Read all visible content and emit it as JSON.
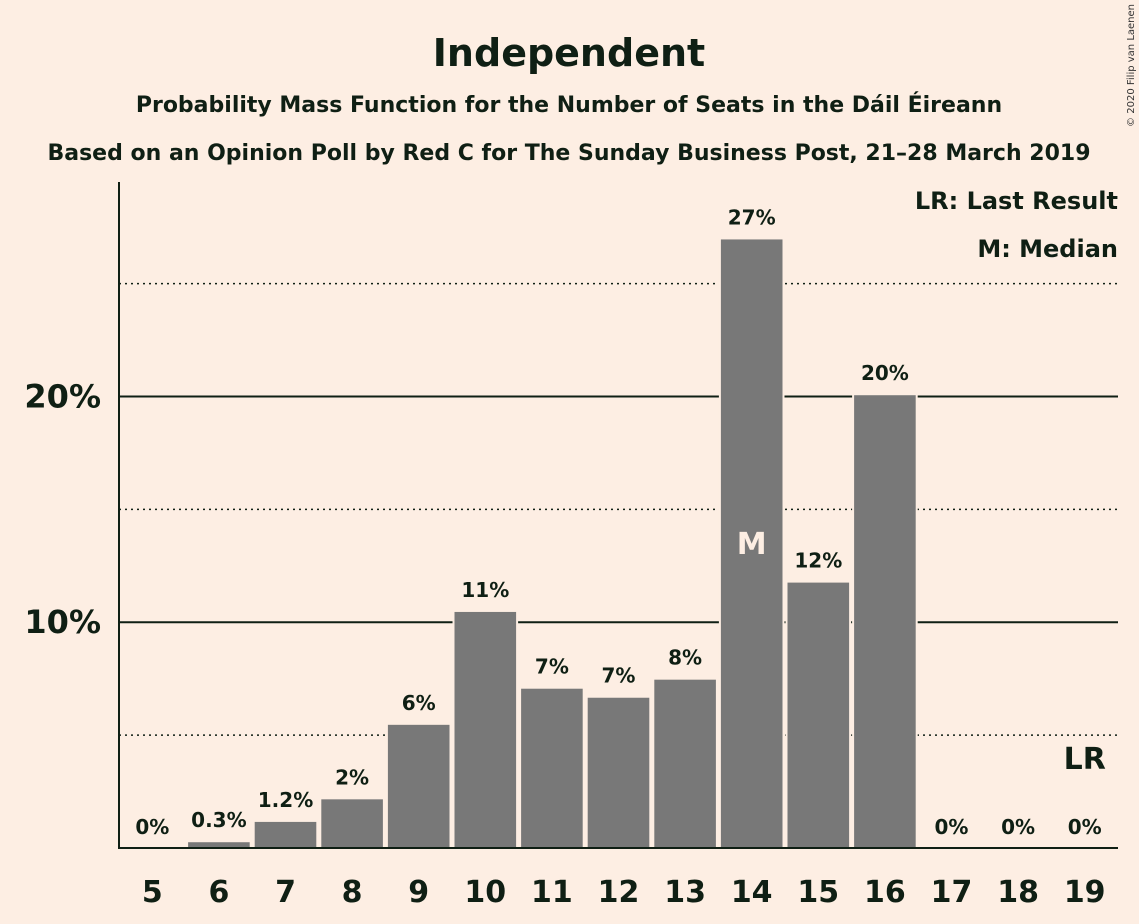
{
  "chart_data": {
    "type": "bar",
    "title": "Independent",
    "subtitle": "Probability Mass Function for the Number of Seats in the Dáil Éireann",
    "subtitle2": "Based on an Opinion Poll by Red C for The Sunday Business Post, 21–28 March 2019",
    "copyright": "© 2020 Filip van Laenen",
    "legend": [
      "LR: Last Result",
      "M: Median"
    ],
    "categories": [
      "5",
      "6",
      "7",
      "8",
      "9",
      "10",
      "11",
      "12",
      "13",
      "14",
      "15",
      "16",
      "17",
      "18",
      "19"
    ],
    "values": [
      0,
      0.3,
      1.2,
      2.2,
      5.5,
      10.5,
      7.1,
      6.7,
      7.5,
      27.0,
      11.8,
      20.1,
      0,
      0,
      0
    ],
    "value_labels": [
      "0%",
      "0.3%",
      "1.2%",
      "2%",
      "6%",
      "11%",
      "7%",
      "7%",
      "8%",
      "27%",
      "12%",
      "20%",
      "0%",
      "0%",
      "0%"
    ],
    "yticks": [
      {
        "value": 10,
        "label": "10%"
      },
      {
        "value": 20,
        "label": "20%"
      }
    ],
    "minor_gridlines": [
      5,
      15,
      25
    ],
    "ylim": [
      0,
      29.5
    ],
    "median_category": "14",
    "median_label": "M",
    "last_result_category": "19",
    "last_result_label": "LR",
    "bar_color": "#787878",
    "background_color": "#fdeee3",
    "text_color": "#0f1f14"
  }
}
